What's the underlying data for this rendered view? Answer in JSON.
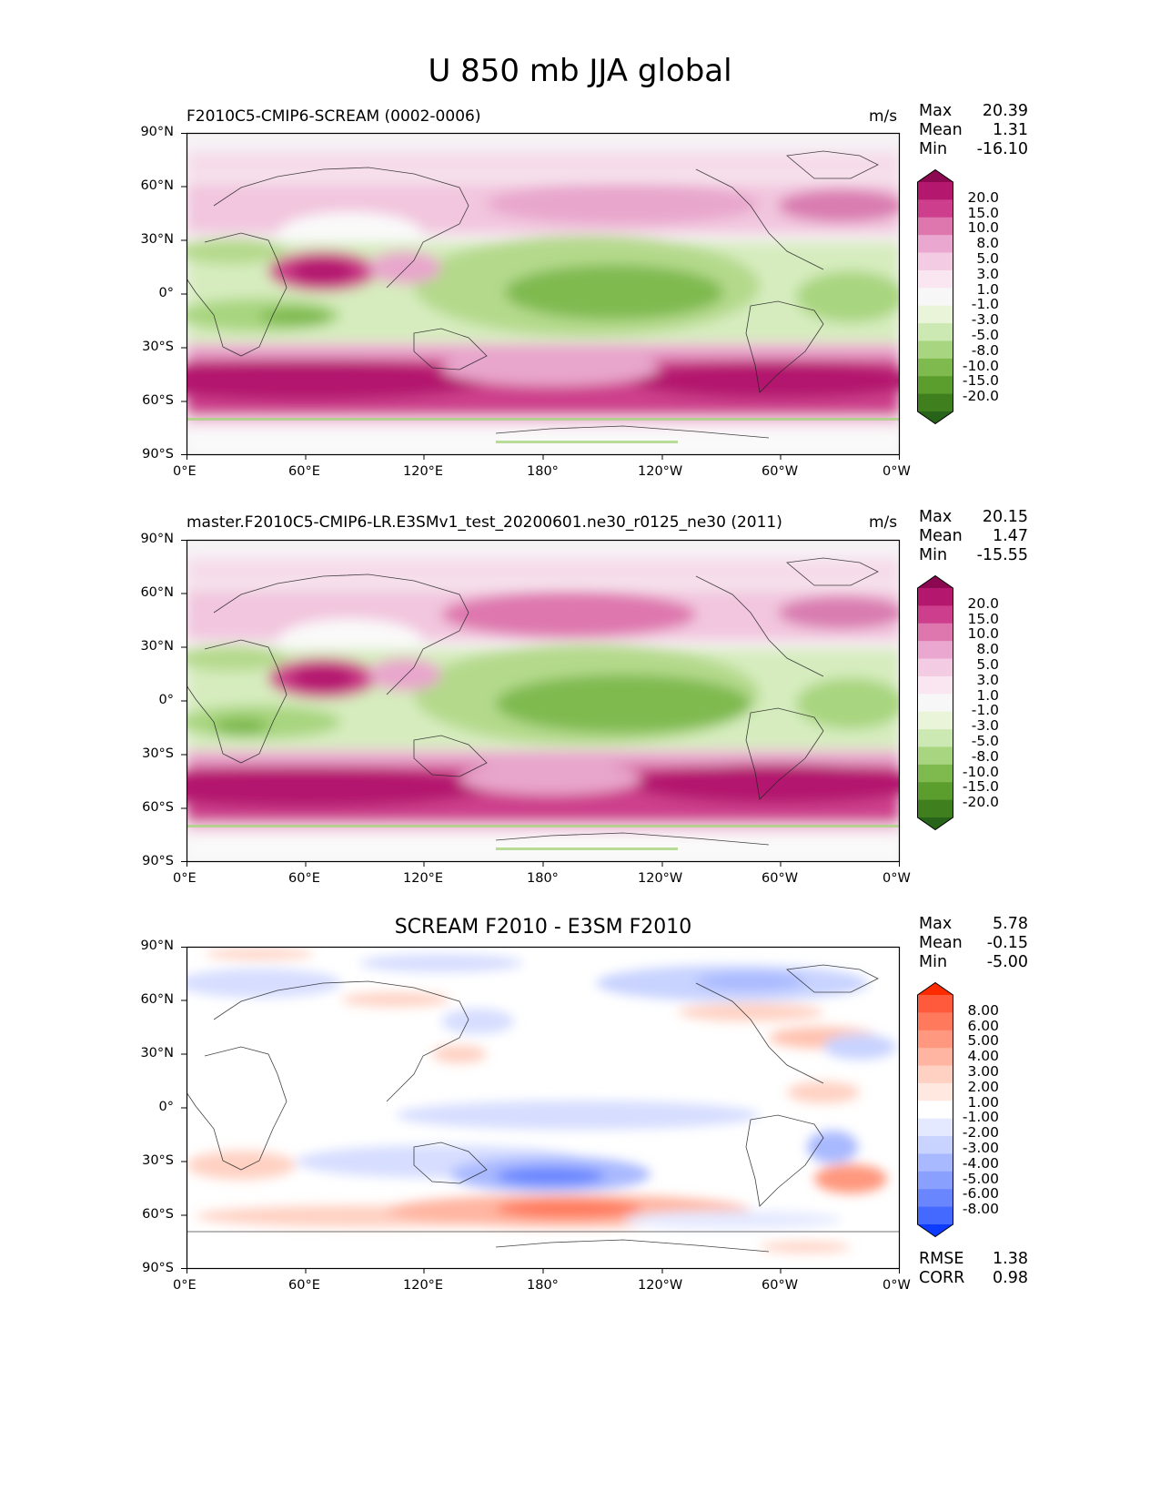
{
  "figure": {
    "title": "U 850 mb JJA global"
  },
  "panels": [
    {
      "id": "test",
      "left_title": "F2010C5-CMIP6-SCREAM (0002-0006)",
      "center_title": "",
      "units": "m/s",
      "stats": [
        {
          "label": "Max",
          "value": "20.39"
        },
        {
          "label": "Mean",
          "value": "1.31"
        },
        {
          "label": "Min",
          "value": "-16.10"
        }
      ],
      "colorbar": {
        "levels": [
          "20.0",
          "15.0",
          "10.0",
          "8.0",
          "5.0",
          "3.0",
          "1.0",
          "-1.0",
          "-3.0",
          "-5.0",
          "-8.0",
          "-10.0",
          "-15.0",
          "-20.0"
        ],
        "colors": [
          "#8c0850",
          "#b3186e",
          "#cd3f8c",
          "#de77ae",
          "#eaa7cf",
          "#f3cbe3",
          "#f9e6f1",
          "#f7f7f7",
          "#e9f4d9",
          "#cde9b3",
          "#a8d57f",
          "#7fba4f",
          "#5c9e2e",
          "#3f7f1e",
          "#276419"
        ]
      }
    },
    {
      "id": "reference",
      "left_title": "master.F2010C5-CMIP6-LR.E3SMv1_test_20200601.ne30_r0125_ne30 (2011)",
      "center_title": "",
      "units": "m/s",
      "stats": [
        {
          "label": "Max",
          "value": "20.15"
        },
        {
          "label": "Mean",
          "value": "1.47"
        },
        {
          "label": "Min",
          "value": "-15.55"
        }
      ],
      "colorbar": {
        "levels": [
          "20.0",
          "15.0",
          "10.0",
          "8.0",
          "5.0",
          "3.0",
          "1.0",
          "-1.0",
          "-3.0",
          "-5.0",
          "-8.0",
          "-10.0",
          "-15.0",
          "-20.0"
        ],
        "colors": [
          "#8c0850",
          "#b3186e",
          "#cd3f8c",
          "#de77ae",
          "#eaa7cf",
          "#f3cbe3",
          "#f9e6f1",
          "#f7f7f7",
          "#e9f4d9",
          "#cde9b3",
          "#a8d57f",
          "#7fba4f",
          "#5c9e2e",
          "#3f7f1e",
          "#276419"
        ]
      }
    },
    {
      "id": "difference",
      "left_title": "",
      "center_title": "SCREAM F2010 - E3SM F2010",
      "units": "",
      "stats": [
        {
          "label": "Max",
          "value": "5.78"
        },
        {
          "label": "Mean",
          "value": "-0.15"
        },
        {
          "label": "Min",
          "value": "-5.00"
        }
      ],
      "extra_stats": [
        {
          "label": "RMSE",
          "value": "1.38"
        },
        {
          "label": "CORR",
          "value": "0.98"
        }
      ],
      "colorbar": {
        "levels": [
          "8.00",
          "6.00",
          "5.00",
          "4.00",
          "3.00",
          "2.00",
          "1.00",
          "-1.00",
          "-2.00",
          "-3.00",
          "-4.00",
          "-5.00",
          "-6.00",
          "-8.00"
        ],
        "colors": [
          "#ff2b00",
          "#ff5a3c",
          "#ff7a5c",
          "#ff987e",
          "#ffb5a1",
          "#ffd1c3",
          "#ffe8e0",
          "#ffffff",
          "#e4e9ff",
          "#c8d3ff",
          "#a9b9ff",
          "#8aa0ff",
          "#6a86ff",
          "#4469ff",
          "#0d3bff"
        ]
      }
    }
  ],
  "axes": {
    "lat_ticks": [
      "90°N",
      "60°N",
      "30°N",
      "0°",
      "30°S",
      "60°S",
      "90°S"
    ],
    "lon_ticks": [
      "0°E",
      "60°E",
      "120°E",
      "180°",
      "120°W",
      "60°W",
      "0°W"
    ]
  },
  "chart_data": {
    "type": "heatmap",
    "title": "U 850 mb JJA global",
    "xlabel": "",
    "ylabel": "",
    "x_ticks": [
      "0°E",
      "60°E",
      "120°E",
      "180°",
      "120°W",
      "60°W",
      "0°W"
    ],
    "y_ticks": [
      "90°N",
      "60°N",
      "30°N",
      "0°",
      "30°S",
      "60°S",
      "90°S"
    ],
    "xlim": [
      0,
      360
    ],
    "ylim": [
      -90,
      90
    ],
    "series": [
      {
        "name": "F2010C5-CMIP6-SCREAM (0002-0006)",
        "max": 20.39,
        "mean": 1.31,
        "min": -16.1,
        "units": "m/s"
      },
      {
        "name": "master.F2010C5-CMIP6-LR.E3SMv1_test_20200601.ne30_r0125_ne30 (2011)",
        "max": 20.15,
        "mean": 1.47,
        "min": -15.55,
        "units": "m/s"
      },
      {
        "name": "SCREAM F2010 - E3SM F2010",
        "max": 5.78,
        "mean": -0.15,
        "min": -5.0,
        "rmse": 1.38,
        "corr": 0.98
      }
    ]
  }
}
